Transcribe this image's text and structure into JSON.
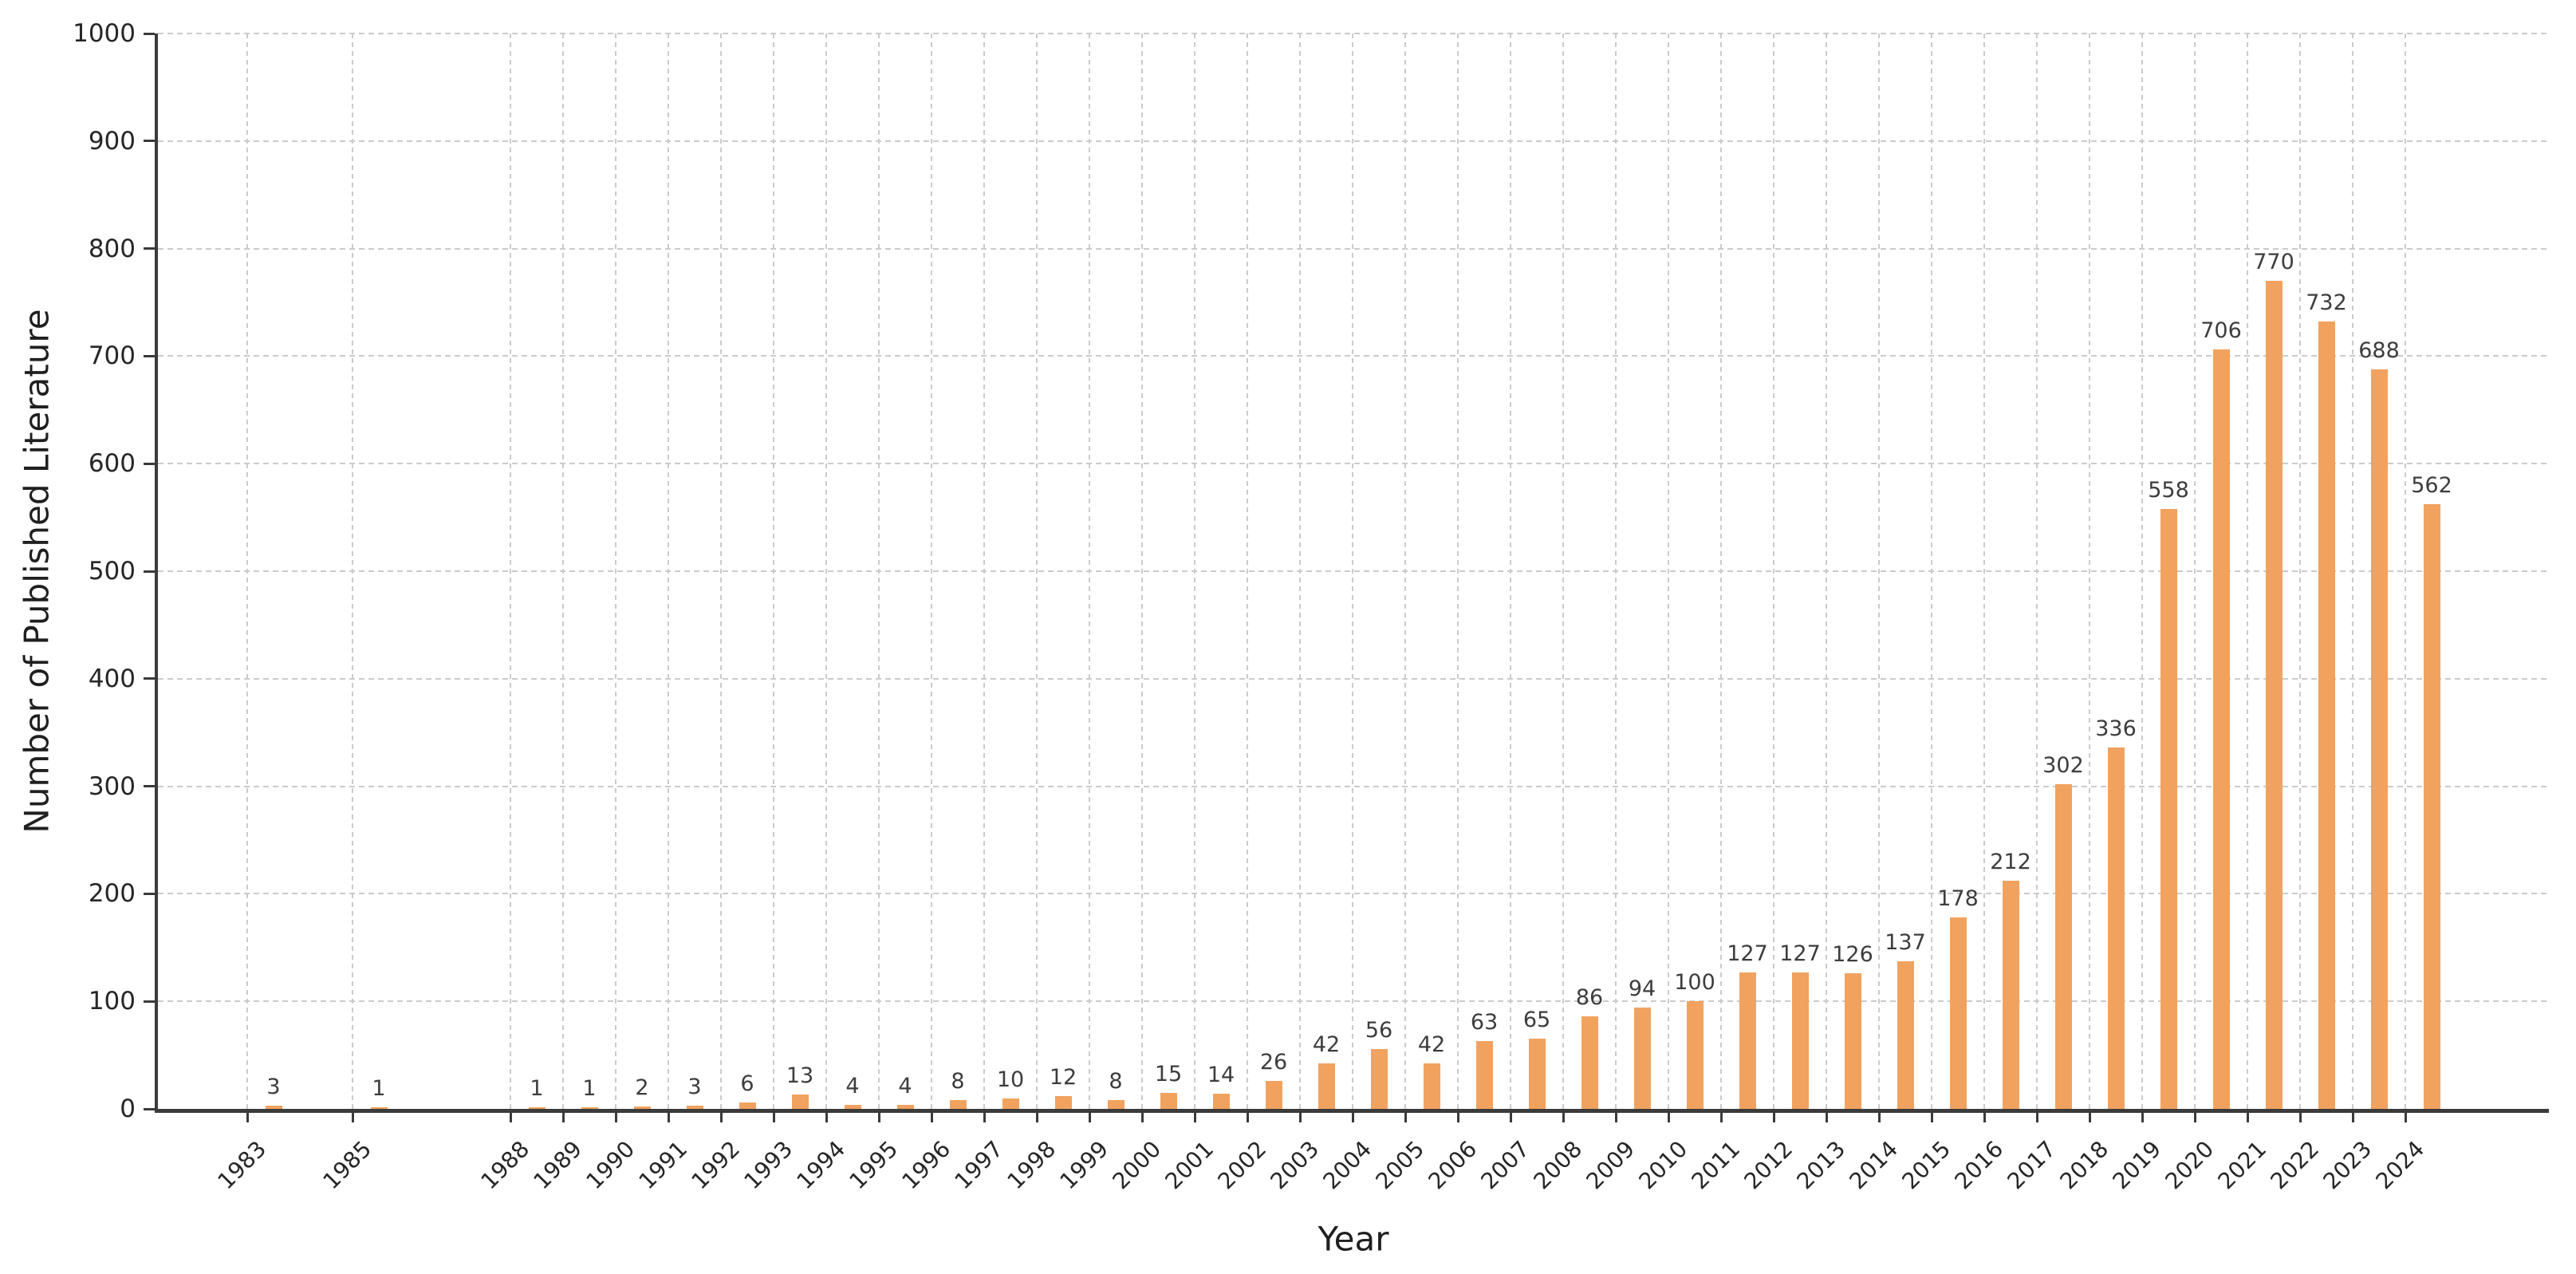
{
  "chart_data": {
    "type": "bar",
    "title": "",
    "xlabel": "Year",
    "ylabel": "Number of Published Literature",
    "categories": [
      "1983",
      "1985",
      "1988",
      "1989",
      "1990",
      "1991",
      "1992",
      "1993",
      "1994",
      "1995",
      "1996",
      "1997",
      "1998",
      "1999",
      "2000",
      "2001",
      "2002",
      "2003",
      "2004",
      "2005",
      "2006",
      "2007",
      "2008",
      "2009",
      "2010",
      "2011",
      "2012",
      "2013",
      "2014",
      "2015",
      "2016",
      "2017",
      "2018",
      "2019",
      "2020",
      "2021",
      "2022",
      "2023",
      "2024"
    ],
    "values": [
      3,
      1,
      1,
      1,
      2,
      3,
      6,
      13,
      4,
      4,
      8,
      10,
      12,
      8,
      15,
      14,
      26,
      42,
      56,
      42,
      63,
      65,
      86,
      94,
      100,
      127,
      127,
      126,
      137,
      178,
      212,
      302,
      336,
      558,
      706,
      770,
      732,
      688,
      562
    ],
    "missing_years_without_bars": [
      "1984",
      "1986",
      "1987"
    ],
    "bar_value_labels_shown": true,
    "ylim": [
      0,
      1000
    ],
    "yticks": [
      0,
      100,
      200,
      300,
      400,
      500,
      600,
      700,
      800,
      900,
      1000
    ],
    "grid": "dashed gridlines on both axes",
    "legend": "none",
    "bar_color": "#f1a25f",
    "grid_color": "#cbcbcb",
    "axis_color": "#3b3b3b",
    "tick_label_color": "#262626",
    "value_label_color": "#3d3d3d"
  }
}
